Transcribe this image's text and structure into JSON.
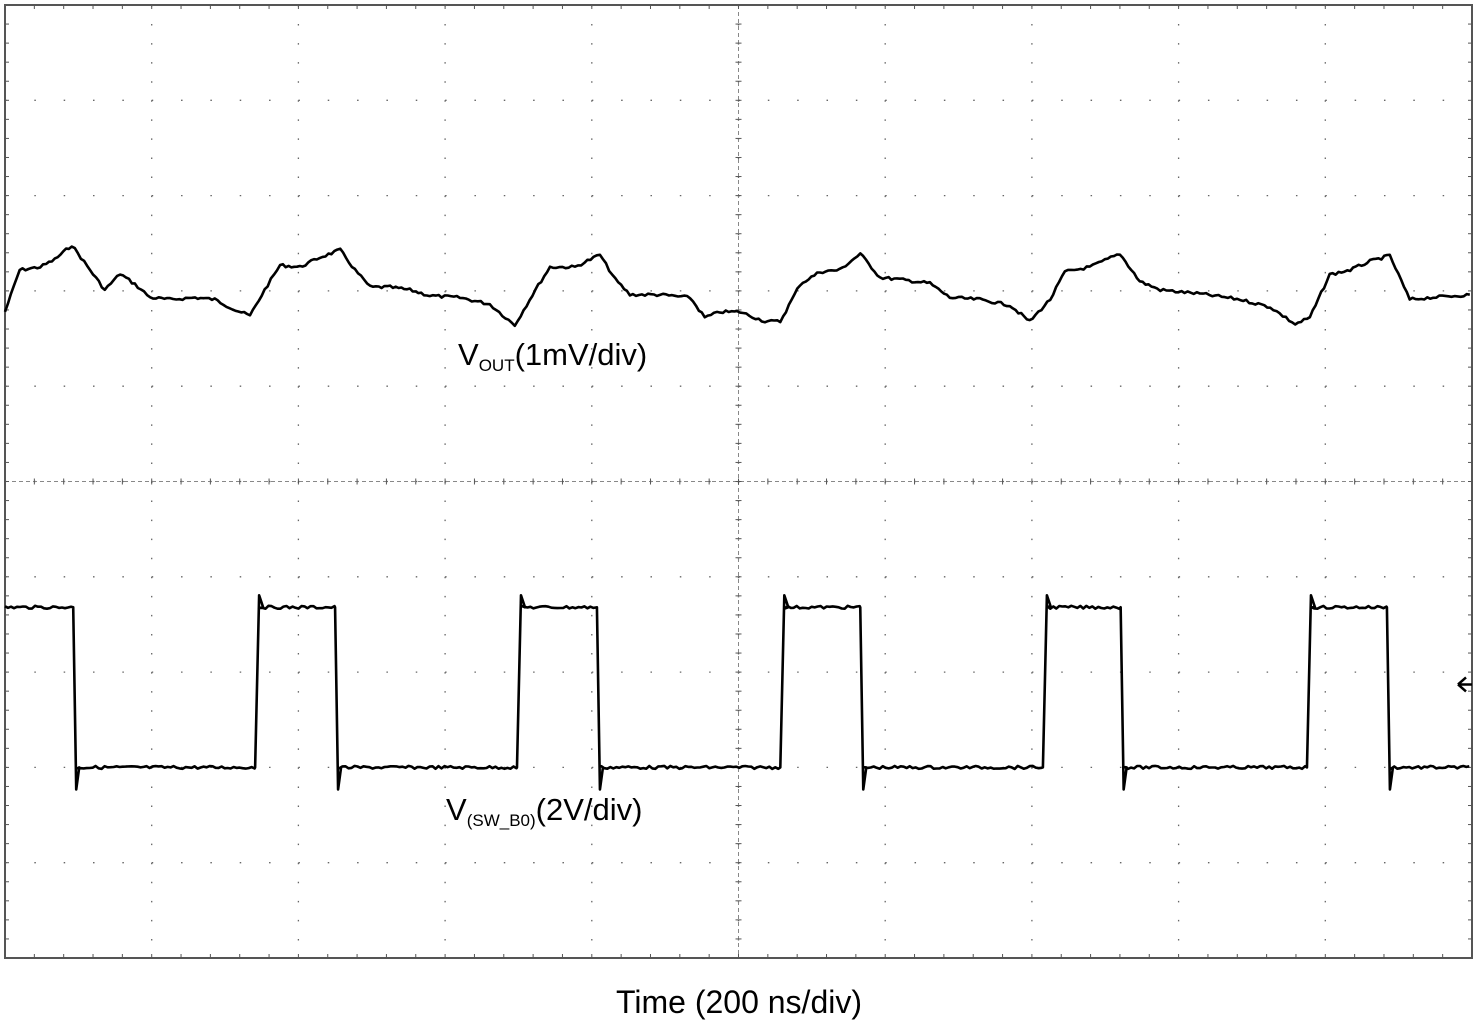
{
  "chart_data": {
    "type": "line",
    "title": "",
    "xlabel": "Time (200 ns/div)",
    "ylabel": "",
    "xlim": [
      0,
      2000
    ],
    "ylim": [
      -5,
      5
    ],
    "x_divisions": 10,
    "y_divisions": 10,
    "grid": true,
    "series": [
      {
        "name": "VOUT",
        "label_main": "V",
        "label_sub": "OUT",
        "label_scale": "(1mV/div)",
        "color": "#000000",
        "t_ns": [
          0,
          20,
          48,
          68,
          91,
          116,
          136,
          157,
          177,
          198,
          225,
          259,
          286,
          314,
          334,
          354,
          375,
          402,
          429,
          457,
          477,
          498,
          525,
          552,
          579,
          620,
          661,
          695,
          723,
          743,
          777,
          811,
          832,
          852,
          893,
          934,
          954,
          975,
          1002,
          1036,
          1057,
          1084,
          1111,
          1138,
          1166,
          1193,
          1220,
          1261,
          1288,
          1329,
          1370,
          1397,
          1425,
          1445,
          1479,
          1520,
          1547,
          1575,
          1629,
          1684,
          1725,
          1759,
          1779,
          1806,
          1834,
          1861,
          1888,
          1915,
          1943,
          1997
        ],
        "div": [
          1.78,
          2.22,
          2.25,
          2.33,
          2.48,
          2.22,
          2.01,
          2.18,
          2.07,
          1.93,
          1.91,
          1.93,
          1.91,
          1.8,
          1.74,
          2.01,
          2.27,
          2.25,
          2.35,
          2.43,
          2.22,
          2.04,
          2.04,
          2.01,
          1.95,
          1.93,
          1.86,
          1.64,
          2.01,
          2.25,
          2.25,
          2.38,
          2.12,
          1.96,
          1.96,
          1.93,
          1.72,
          1.78,
          1.78,
          1.68,
          1.68,
          2.07,
          2.2,
          2.22,
          2.39,
          2.14,
          2.12,
          2.08,
          1.93,
          1.91,
          1.85,
          1.68,
          1.91,
          2.2,
          2.25,
          2.39,
          2.1,
          2.01,
          1.97,
          1.91,
          1.83,
          1.65,
          1.72,
          2.17,
          2.22,
          2.31,
          2.37,
          1.91,
          1.93,
          1.96
        ]
      },
      {
        "name": "V(SW_B0)",
        "label_main": "V",
        "label_sub": "(SW_B0)",
        "label_scale": "(2V/div)",
        "color": "#000000",
        "high_div": -1.32,
        "low_div": -3.0,
        "initial_state": "high",
        "edges_ns": [
          93,
          341,
          450,
          698,
          807,
          1057,
          1166,
          1415,
          1521,
          1775,
          1884
        ]
      }
    ],
    "markers": {
      "trigger_level_arrow": "left-arrow-icon",
      "trigger_level_div": -2.13
    }
  }
}
